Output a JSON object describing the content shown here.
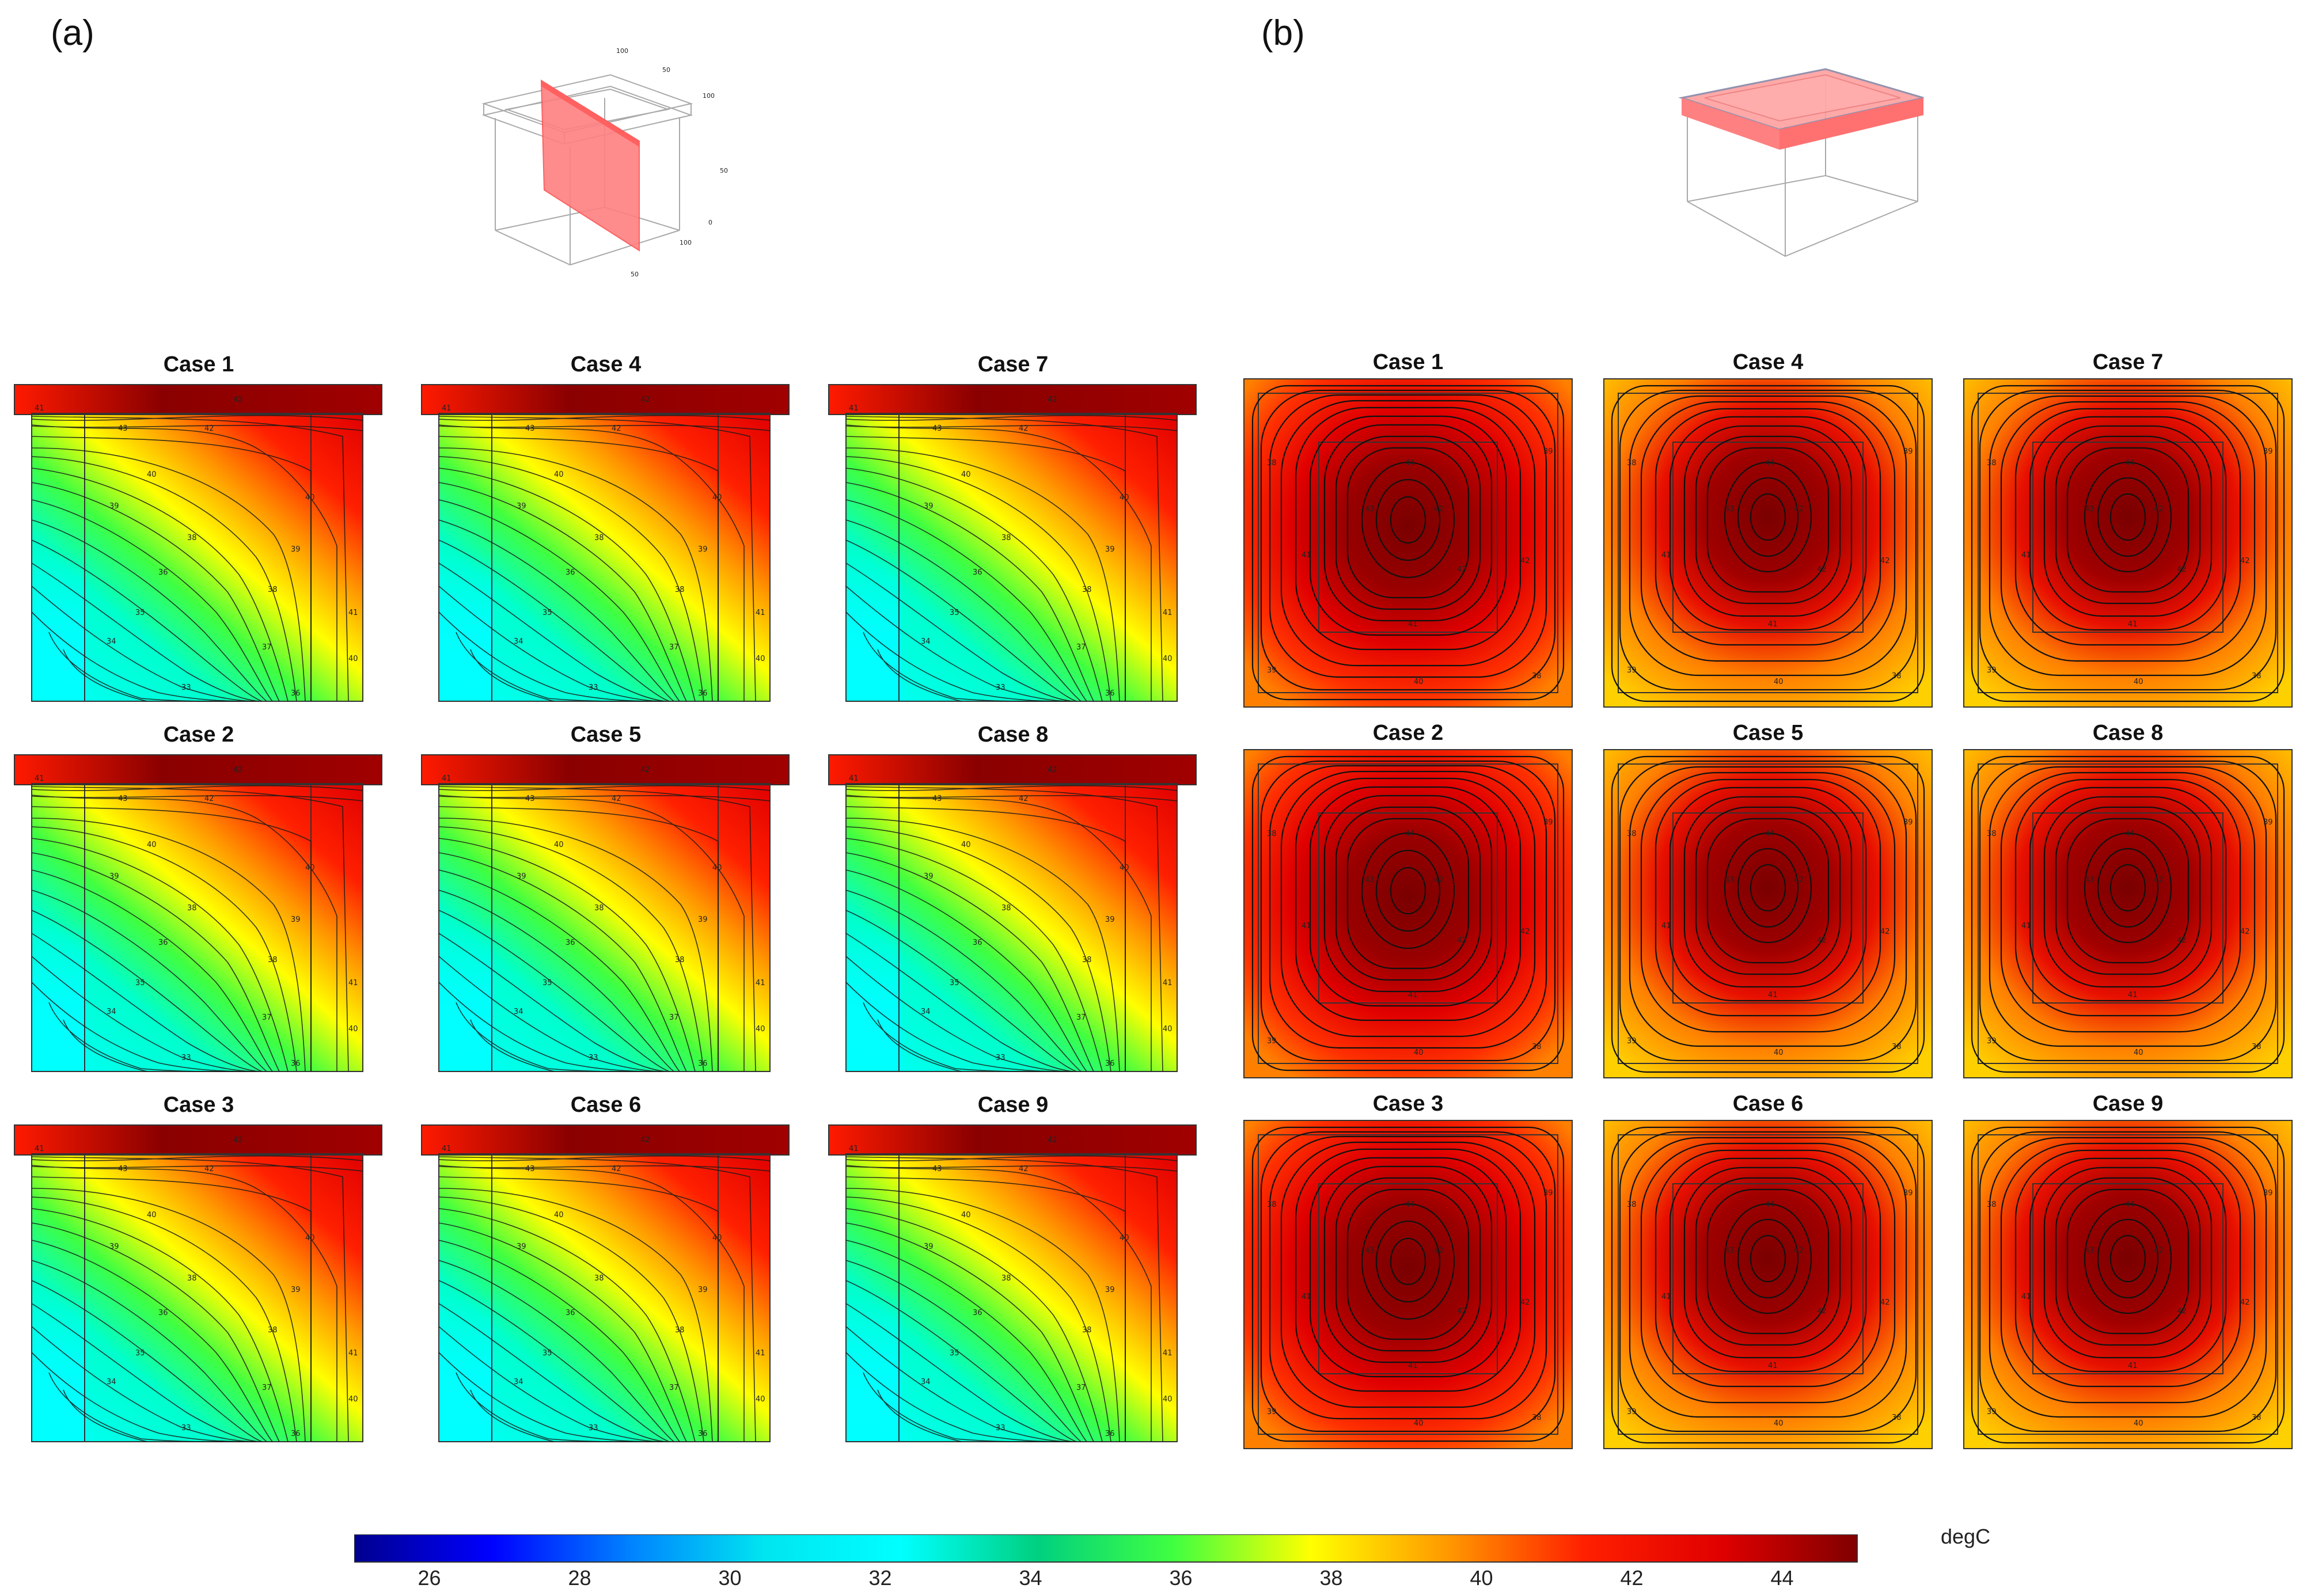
{
  "panels": {
    "left": {
      "letter": "(a)",
      "view": "vertical section",
      "cases": [
        {
          "title": "Case 1"
        },
        {
          "title": "Case 4"
        },
        {
          "title": "Case 7"
        },
        {
          "title": "Case 2"
        },
        {
          "title": "Case 5"
        },
        {
          "title": "Case 8"
        },
        {
          "title": "Case 3"
        },
        {
          "title": "Case 6"
        },
        {
          "title": "Case 9"
        }
      ]
    },
    "right": {
      "letter": "(b)",
      "view": "horizontal section",
      "cases": [
        {
          "title": "Case 1"
        },
        {
          "title": "Case 4"
        },
        {
          "title": "Case 7"
        },
        {
          "title": "Case 2"
        },
        {
          "title": "Case 5"
        },
        {
          "title": "Case 8"
        },
        {
          "title": "Case 3"
        },
        {
          "title": "Case 6"
        },
        {
          "title": "Case 9"
        }
      ]
    }
  },
  "colorbar": {
    "unit": "degC",
    "min": 25,
    "max": 45,
    "ticks": [
      "26",
      "28",
      "30",
      "32",
      "34",
      "36",
      "38",
      "40",
      "42",
      "44"
    ],
    "colors": [
      "#00008f",
      "#0000ff",
      "#0080ff",
      "#00e5f0",
      "#00ffff",
      "#00d080",
      "#40ff40",
      "#ffff00",
      "#ff9900",
      "#ff2000",
      "#e00000",
      "#800000"
    ]
  },
  "contour_labels": {
    "left": [
      "41",
      "42",
      "43",
      "42",
      "40",
      "39",
      "38",
      "36",
      "35",
      "34",
      "33",
      "36",
      "37",
      "38",
      "39",
      "40",
      "41",
      "40"
    ],
    "right": [
      "42",
      "43",
      "44",
      "42",
      "41",
      "41",
      "40",
      "39",
      "38",
      "39",
      "38",
      "42"
    ]
  }
}
